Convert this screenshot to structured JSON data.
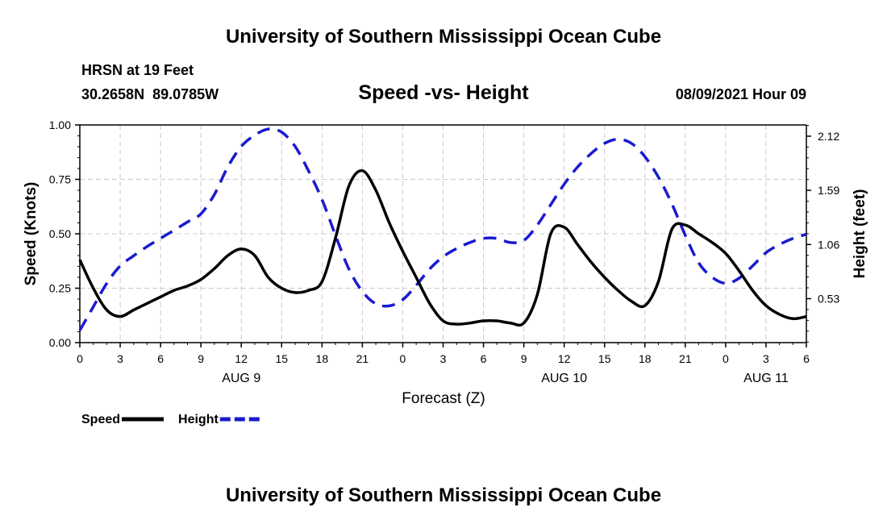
{
  "header": {
    "title_top": "University of Southern Mississippi Ocean Cube",
    "station": "HRSN at 19 Feet",
    "coords": "30.2658N  89.0785W",
    "subtitle": "Speed -vs- Height",
    "datetime": "08/09/2021 Hour 09",
    "title_bottom": "University of Southern Mississippi Ocean Cube"
  },
  "chart_data": {
    "type": "line",
    "xlabel": "Forecast (Z)",
    "ylabel_left": "Speed (Knots)",
    "ylabel_right": "Height (feet)",
    "x_range": [
      0,
      54
    ],
    "x_ticks": [
      0,
      3,
      6,
      9,
      12,
      15,
      18,
      21,
      24,
      27,
      30,
      33,
      36,
      39,
      42,
      45,
      48,
      51,
      54
    ],
    "x_tick_labels": [
      "0",
      "3",
      "6",
      "9",
      "12",
      "15",
      "18",
      "21",
      "0",
      "3",
      "6",
      "9",
      "12",
      "15",
      "18",
      "21",
      "0",
      "3",
      "6"
    ],
    "day_labels": [
      {
        "label": "AUG 9",
        "x": 12
      },
      {
        "label": "AUG 10",
        "x": 36
      },
      {
        "label": "AUG 11",
        "x": 51
      }
    ],
    "ylim_left": [
      0,
      1
    ],
    "left_ticks": [
      0,
      0.25,
      0.5,
      0.75,
      1.0
    ],
    "left_tick_labels": [
      "0.00",
      "0.25",
      "0.50",
      "0.75",
      "1.00"
    ],
    "ylim_right": [
      0.1,
      2.23
    ],
    "right_ticks": [
      0.53,
      1.06,
      1.59,
      2.12
    ],
    "right_tick_labels": [
      "0.53",
      "1.06",
      "1.59",
      "2.12"
    ],
    "grid": true,
    "series": [
      {
        "name": "Speed",
        "legend_label": "Speed",
        "axis": "left",
        "color": "#000000",
        "dash": "solid",
        "x": [
          0,
          1,
          2,
          3,
          4,
          5,
          6,
          7,
          8,
          9,
          10,
          11,
          12,
          13,
          14,
          15,
          16,
          17,
          18,
          19,
          20,
          21,
          22,
          23,
          24,
          25,
          26,
          27,
          28,
          29,
          30,
          31,
          32,
          33,
          34,
          35,
          36,
          37,
          38,
          39,
          40,
          41,
          42,
          43,
          44,
          45,
          46,
          47,
          48,
          49,
          50,
          51,
          52,
          53,
          54
        ],
        "values": [
          0.38,
          0.25,
          0.15,
          0.12,
          0.15,
          0.18,
          0.21,
          0.24,
          0.26,
          0.29,
          0.34,
          0.4,
          0.43,
          0.4,
          0.3,
          0.25,
          0.23,
          0.24,
          0.28,
          0.48,
          0.72,
          0.79,
          0.7,
          0.55,
          0.42,
          0.3,
          0.18,
          0.1,
          0.085,
          0.09,
          0.1,
          0.1,
          0.09,
          0.09,
          0.22,
          0.5,
          0.53,
          0.45,
          0.37,
          0.3,
          0.24,
          0.19,
          0.17,
          0.28,
          0.52,
          0.54,
          0.5,
          0.46,
          0.41,
          0.33,
          0.24,
          0.17,
          0.13,
          0.11,
          0.12
        ]
      },
      {
        "name": "Height",
        "legend_label": "Height",
        "axis": "right",
        "color": "#1a1ad0",
        "dash": "dashed",
        "x": [
          0,
          1,
          2,
          3,
          4,
          5,
          6,
          7,
          8,
          9,
          10,
          11,
          12,
          13,
          14,
          15,
          16,
          17,
          18,
          19,
          20,
          21,
          22,
          23,
          24,
          25,
          26,
          27,
          28,
          29,
          30,
          31,
          32,
          33,
          34,
          35,
          36,
          37,
          38,
          39,
          40,
          41,
          42,
          43,
          44,
          45,
          46,
          47,
          48,
          49,
          50,
          51,
          52,
          53,
          54
        ],
        "values": [
          0.22,
          0.45,
          0.68,
          0.85,
          0.95,
          1.04,
          1.12,
          1.2,
          1.28,
          1.36,
          1.55,
          1.82,
          2.02,
          2.13,
          2.19,
          2.16,
          2.02,
          1.78,
          1.5,
          1.15,
          0.82,
          0.6,
          0.48,
          0.46,
          0.52,
          0.66,
          0.82,
          0.94,
          1.02,
          1.08,
          1.12,
          1.12,
          1.08,
          1.1,
          1.25,
          1.45,
          1.65,
          1.82,
          1.95,
          2.05,
          2.09,
          2.05,
          1.92,
          1.72,
          1.46,
          1.15,
          0.88,
          0.74,
          0.68,
          0.73,
          0.85,
          0.98,
          1.06,
          1.12,
          1.16
        ]
      }
    ]
  }
}
